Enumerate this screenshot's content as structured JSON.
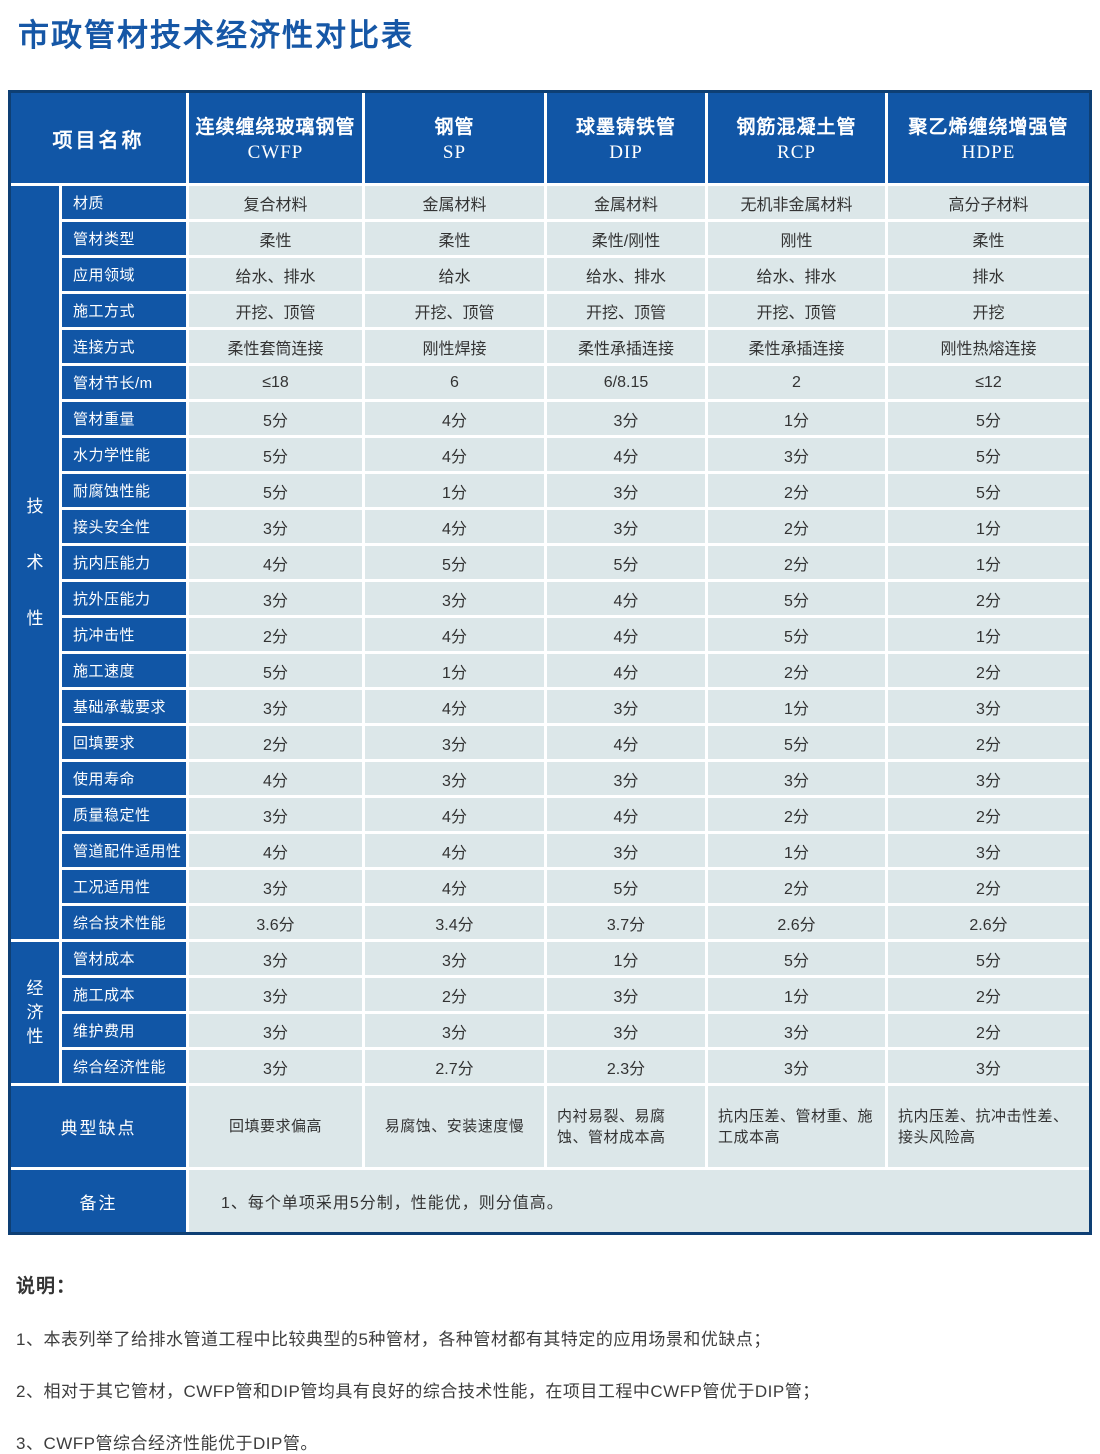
{
  "title": "市政管材技术经济性对比表",
  "colors": {
    "title_blue": "#1657a6",
    "header_blue": "#1156a6",
    "cell_background": "#dce7e9",
    "outer_border_navy": "#0e3f74",
    "body_text": "#333333"
  },
  "table": {
    "corner_header": "项目名称",
    "columns": [
      {
        "name": "连续缠绕玻璃钢管",
        "abbr": "CWFP"
      },
      {
        "name": "钢管",
        "abbr": "SP"
      },
      {
        "name": "球墨铸铁管",
        "abbr": "DIP"
      },
      {
        "name": "钢筋混凝土管",
        "abbr": "RCP"
      },
      {
        "name": "聚乙烯缠绕增强管",
        "abbr": "HDPE"
      }
    ],
    "groups": [
      {
        "label": "技术性",
        "rows": [
          {
            "label": "材质",
            "values": [
              "复合材料",
              "金属材料",
              "金属材料",
              "无机非金属材料",
              "高分子材料"
            ]
          },
          {
            "label": "管材类型",
            "values": [
              "柔性",
              "柔性",
              "柔性/刚性",
              "刚性",
              "柔性"
            ]
          },
          {
            "label": "应用领域",
            "values": [
              "给水、排水",
              "给水",
              "给水、排水",
              "给水、排水",
              "排水"
            ]
          },
          {
            "label": "施工方式",
            "values": [
              "开挖、顶管",
              "开挖、顶管",
              "开挖、顶管",
              "开挖、顶管",
              "开挖"
            ]
          },
          {
            "label": "连接方式",
            "values": [
              "柔性套筒连接",
              "刚性焊接",
              "柔性承插连接",
              "柔性承插连接",
              "刚性热熔连接"
            ]
          },
          {
            "label": "管材节长/m",
            "values": [
              "≤18",
              "6",
              "6/8.15",
              "2",
              "≤12"
            ]
          },
          {
            "label": "管材重量",
            "values": [
              "5分",
              "4分",
              "3分",
              "1分",
              "5分"
            ]
          },
          {
            "label": "水力学性能",
            "values": [
              "5分",
              "4分",
              "4分",
              "3分",
              "5分"
            ]
          },
          {
            "label": "耐腐蚀性能",
            "values": [
              "5分",
              "1分",
              "3分",
              "2分",
              "5分"
            ]
          },
          {
            "label": "接头安全性",
            "values": [
              "3分",
              "4分",
              "3分",
              "2分",
              "1分"
            ]
          },
          {
            "label": "抗内压能力",
            "values": [
              "4分",
              "5分",
              "5分",
              "2分",
              "1分"
            ]
          },
          {
            "label": "抗外压能力",
            "values": [
              "3分",
              "3分",
              "4分",
              "5分",
              "2分"
            ]
          },
          {
            "label": "抗冲击性",
            "values": [
              "2分",
              "4分",
              "4分",
              "5分",
              "1分"
            ]
          },
          {
            "label": "施工速度",
            "values": [
              "5分",
              "1分",
              "4分",
              "2分",
              "2分"
            ]
          },
          {
            "label": "基础承载要求",
            "values": [
              "3分",
              "4分",
              "3分",
              "1分",
              "3分"
            ]
          },
          {
            "label": "回填要求",
            "values": [
              "2分",
              "3分",
              "4分",
              "5分",
              "2分"
            ]
          },
          {
            "label": "使用寿命",
            "values": [
              "4分",
              "3分",
              "3分",
              "3分",
              "3分"
            ]
          },
          {
            "label": "质量稳定性",
            "values": [
              "3分",
              "4分",
              "4分",
              "2分",
              "2分"
            ]
          },
          {
            "label": "管道配件适用性",
            "values": [
              "4分",
              "4分",
              "3分",
              "1分",
              "3分"
            ]
          },
          {
            "label": "工况适用性",
            "values": [
              "3分",
              "4分",
              "5分",
              "2分",
              "2分"
            ]
          },
          {
            "label": "综合技术性能",
            "values": [
              "3.6分",
              "3.4分",
              "3.7分",
              "2.6分",
              "2.6分"
            ]
          }
        ]
      },
      {
        "label": "经济性",
        "rows": [
          {
            "label": "管材成本",
            "values": [
              "3分",
              "3分",
              "1分",
              "5分",
              "5分"
            ]
          },
          {
            "label": "施工成本",
            "values": [
              "3分",
              "2分",
              "3分",
              "1分",
              "2分"
            ]
          },
          {
            "label": "维护费用",
            "values": [
              "3分",
              "3分",
              "3分",
              "3分",
              "2分"
            ]
          },
          {
            "label": "综合经济性能",
            "values": [
              "3分",
              "2.7分",
              "2.3分",
              "3分",
              "3分"
            ]
          }
        ]
      }
    ],
    "defects_row": {
      "label": "典型缺点",
      "values": [
        "回填要求偏高",
        "易腐蚀、安装速度慢",
        "内衬易裂、易腐蚀、管材成本高",
        "抗内压差、管材重、施工成本高",
        "抗内压差、抗冲击性差、接头风险高"
      ]
    },
    "remark_row": {
      "label": "备注",
      "value": "1、每个单项采用5分制，性能优，则分值高。"
    }
  },
  "notes": {
    "heading": "说明：",
    "items": [
      "1、本表列举了给排水管道工程中比较典型的5种管材，各种管材都有其特定的应用场景和优缺点；",
      "2、相对于其它管材，CWFP管和DIP管均具有良好的综合技术性能，在项目工程中CWFP管优于DIP管；",
      "3、CWFP管综合经济性能优于DIP管。"
    ]
  }
}
